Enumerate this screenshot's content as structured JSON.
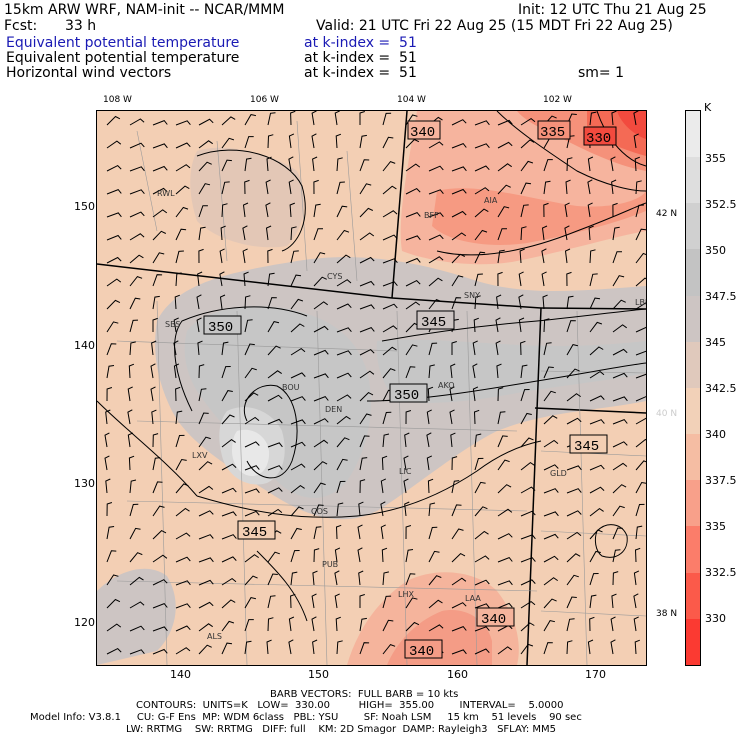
{
  "header": {
    "model": "15km ARW WRF, NAM-init -- NCAR/MMM",
    "init": "Init: 12 UTC Thu 21 Aug 25",
    "fcst_label": "Fcst:",
    "fcst_value": "33 h",
    "valid": "Valid: 21 UTC Fri 22 Aug 25 (15 MDT Fri 22 Aug 25)",
    "field1": "Equivalent potential temperature",
    "field1_level": "at k-index =  51",
    "field2": "Equivalent potential temperature",
    "field2_level": "at k-index =  51",
    "field3": "Horizontal wind vectors",
    "field3_level": "at k-index =  51",
    "sm": "sm= 1"
  },
  "colors": {
    "blue_text": "#1a1ab4",
    "colorbar": [
      "#fb3a32",
      "#fb5a4a",
      "#fb7d6a",
      "#f8a08a",
      "#f5bda3",
      "#f2d1b8",
      "#e0c9bc",
      "#cdc5c3",
      "#c3c3c3",
      "#d0d0d0",
      "#dedede",
      "#ebebeb"
    ]
  },
  "map": {
    "lon_labels": [
      "108 W",
      "106 W",
      "104 W",
      "102 W"
    ],
    "lat_labels": [
      "42 N",
      "40 N",
      "38 N"
    ],
    "x_ticks": [
      "140",
      "150",
      "160",
      "170"
    ],
    "y_ticks": [
      "150",
      "140",
      "130",
      "120"
    ],
    "stations": [
      "RWL",
      "BFF",
      "AIA",
      "CYS",
      "SNY",
      "LBF",
      "SBS",
      "BOU",
      "DEN",
      "AKO",
      "LXV",
      "LIC",
      "GLD",
      "COS",
      "PUB",
      "LHX",
      "LAA",
      "ALS"
    ],
    "contour_labels": [
      "340",
      "335",
      "330",
      "350",
      "345",
      "350",
      "345",
      "345",
      "340",
      "340"
    ]
  },
  "colorbar": {
    "unit": "K",
    "labels": [
      "355",
      "352.5",
      "350",
      "347.5",
      "345",
      "342.5",
      "340",
      "337.5",
      "335",
      "332.5",
      "330"
    ]
  },
  "footer": {
    "barb": "BARB VECTORS:  FULL BARB = 10 kts",
    "contours": "CONTOURS:  UNITS=K   LOW=  330.00         HIGH=  355.00        INTERVAL=    5.0000",
    "model_info": "Model Info: V3.8.1     CU: G-F Ens  MP: WDM 6class   PBL: YSU        SF: Noah LSM     15 km    51 levels    90 sec",
    "model_info2": "LW: RRTMG    SW: RRTMG   DIFF: full    KM: 2D Smagor  DAMP: Rayleigh3   SFLAY: MM5"
  }
}
